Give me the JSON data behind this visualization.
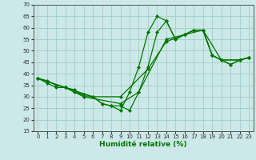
{
  "xlabel": "Humidité relative (%)",
  "xlim": [
    -0.5,
    23.5
  ],
  "ylim": [
    15,
    70
  ],
  "yticks": [
    15,
    20,
    25,
    30,
    35,
    40,
    45,
    50,
    55,
    60,
    65,
    70
  ],
  "xticks": [
    0,
    1,
    2,
    3,
    4,
    5,
    6,
    7,
    8,
    9,
    10,
    11,
    12,
    13,
    14,
    15,
    16,
    17,
    18,
    19,
    20,
    21,
    22,
    23
  ],
  "bg_color": "#cce8e8",
  "grid_color": "#99ccbb",
  "line_color": "#007700",
  "series_a_x": [
    0,
    1,
    2,
    3,
    4,
    5,
    6,
    7,
    8,
    9,
    10,
    11,
    12,
    13,
    14,
    15,
    16,
    17,
    18,
    19,
    20,
    21,
    22,
    23
  ],
  "series_a_y": [
    38,
    37,
    35,
    34,
    33,
    30,
    30,
    27,
    26,
    24,
    32,
    43,
    58,
    65,
    63,
    55,
    57,
    59,
    59,
    48,
    46,
    44,
    46,
    47
  ],
  "series_b_x": [
    0,
    1,
    2,
    3,
    4,
    5,
    6,
    7,
    8,
    9,
    10,
    11,
    12,
    13,
    14,
    15,
    16,
    17,
    18,
    19,
    20,
    21,
    22,
    23
  ],
  "series_b_y": [
    38,
    36,
    34,
    34,
    32,
    31,
    30,
    27,
    26,
    26,
    24,
    32,
    43,
    58,
    63,
    55,
    57,
    59,
    59,
    48,
    46,
    44,
    46,
    47
  ],
  "series_c_x": [
    0,
    3,
    6,
    9,
    12,
    14,
    16,
    18,
    20,
    22,
    23
  ],
  "series_c_y": [
    38,
    34,
    30,
    30,
    42,
    54,
    57,
    59,
    46,
    46,
    47
  ],
  "series_d_x": [
    0,
    3,
    5,
    9,
    11,
    14,
    16,
    17,
    18,
    19,
    20,
    22,
    23
  ],
  "series_d_y": [
    38,
    34,
    30,
    27,
    32,
    55,
    57,
    59,
    59,
    48,
    46,
    46,
    47
  ]
}
